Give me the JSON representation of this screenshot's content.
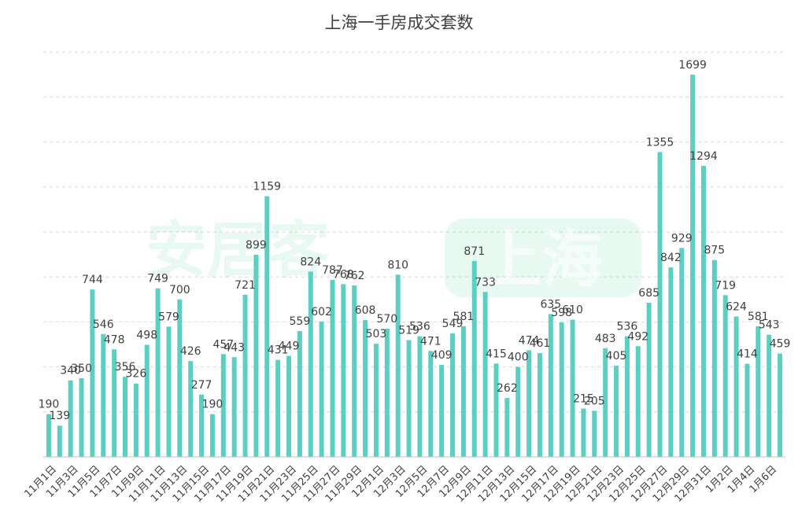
{
  "chart_data": {
    "type": "bar",
    "title": "上海一手房成交套数",
    "xlabel": "",
    "ylabel": "",
    "ylim": [
      0,
      1800
    ],
    "grid": true,
    "legend": "none",
    "bar_color": "#5ccfc3",
    "categories": [
      "11月1日",
      "11月2日",
      "11月3日",
      "11月4日",
      "11月5日",
      "11月6日",
      "11月7日",
      "11月8日",
      "11月9日",
      "11月10日",
      "11月11日",
      "11月12日",
      "11月13日",
      "11月14日",
      "11月15日",
      "11月16日",
      "11月17日",
      "11月18日",
      "11月19日",
      "11月20日",
      "11月21日",
      "11月22日",
      "11月23日",
      "11月24日",
      "11月25日",
      "11月26日",
      "11月27日",
      "11月28日",
      "11月29日",
      "11月30日",
      "12月1日",
      "12月2日",
      "12月3日",
      "12月4日",
      "12月5日",
      "12月6日",
      "12月7日",
      "12月8日",
      "12月9日",
      "12月10日",
      "12月11日",
      "12月12日",
      "12月13日",
      "12月14日",
      "12月15日",
      "12月16日",
      "12月17日",
      "12月18日",
      "12月19日",
      "12月20日",
      "12月21日",
      "12月22日",
      "12月23日",
      "12月24日",
      "12月25日",
      "12月26日",
      "12月27日",
      "12月28日",
      "12月29日",
      "12月30日",
      "12月31日",
      "1月1日",
      "1月2日",
      "1月3日",
      "1月4日",
      "1月5日",
      "1月6日",
      "1月7日"
    ],
    "values": [
      190,
      139,
      340,
      350,
      744,
      546,
      478,
      356,
      326,
      498,
      749,
      579,
      700,
      426,
      277,
      190,
      457,
      443,
      721,
      899,
      1159,
      431,
      449,
      559,
      824,
      602,
      787,
      768,
      762,
      608,
      503,
      570,
      810,
      519,
      536,
      471,
      409,
      549,
      581,
      871,
      733,
      415,
      262,
      400,
      474,
      461,
      635,
      598,
      610,
      215,
      205,
      483,
      405,
      536,
      492,
      685,
      1355,
      842,
      929,
      1699,
      1294,
      875,
      719,
      624,
      414,
      581,
      543,
      459
    ],
    "value_labels": [
      "190",
      "139",
      "340",
      "350",
      "744",
      "546",
      "478",
      "356",
      "326",
      "498",
      "749",
      "579",
      "700",
      "426",
      "277",
      "190",
      "457",
      "443",
      "721",
      "899",
      "1159",
      "431",
      "449",
      "559",
      "824",
      "602",
      "787",
      "768",
      "762",
      "608",
      "503",
      "570",
      "810",
      "519",
      "536",
      "471",
      "409",
      "549",
      "581",
      "871",
      "733",
      "415",
      "262",
      "400",
      "474",
      "461",
      "635",
      "598",
      "610",
      "215",
      "205",
      "483",
      "405",
      "536",
      "492",
      "685",
      "1355",
      "842",
      "929",
      "1699",
      "1294",
      "875",
      "719",
      "624",
      "414",
      "581",
      "543",
      "459"
    ],
    "value_labels_rendered": [
      "190",
      "139",
      "340",
      "350",
      "744",
      "546",
      "478",
      "356",
      "326",
      "498",
      "749",
      "579",
      "700",
      "426",
      "277",
      "190",
      "457",
      "443",
      "721",
      "899",
      "1159",
      "431",
      "449",
      "559",
      "824",
      "602",
      "787",
      "768",
      "762",
      "608",
      "503",
      "570",
      "810",
      "519",
      "536",
      "471",
      "409",
      "549",
      "581",
      "871",
      "733",
      "415",
      "262",
      "400",
      "474",
      "461",
      "635",
      "598",
      "610",
      "215",
      "205",
      "483",
      "405",
      "536",
      "492",
      "685",
      "1355",
      "842",
      "929",
      "1699",
      "1294",
      "875",
      "719",
      "624",
      "414",
      "581",
      "543",
      "459"
    ],
    "visible_tick_labels": [
      "11月1日",
      "11月3日",
      "11月5日",
      "11月7日",
      "11月9日",
      "11月11日",
      "11月13日",
      "11月15日",
      "11月17日",
      "11月19日",
      "11月21日",
      "11月23日",
      "11月25日",
      "11月27日",
      "11月29日",
      "12月1日",
      "12月3日",
      "12月5日",
      "12月7日",
      "12月9日",
      "12月11日",
      "12月13日",
      "12月15日",
      "12月17日",
      "12月19日",
      "12月21日",
      "12月23日",
      "12月25日",
      "12月27日",
      "12月29日",
      "12月31日",
      "1月2日",
      "1月4日",
      "1月6日"
    ],
    "watermark": {
      "left": "安居客",
      "right": "上海"
    }
  }
}
